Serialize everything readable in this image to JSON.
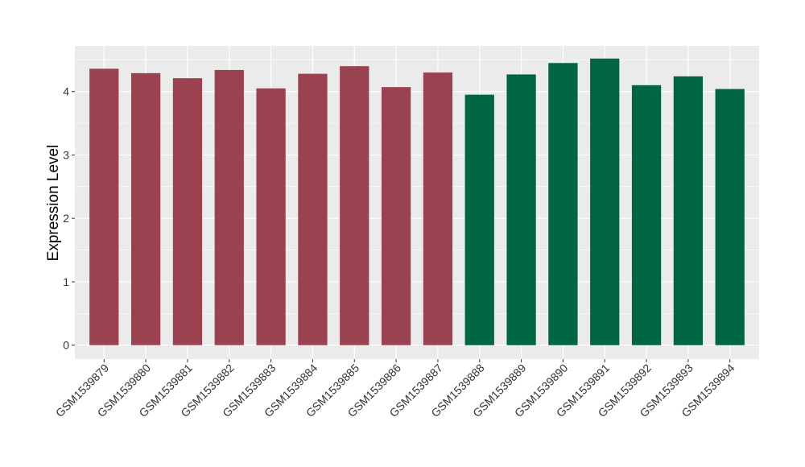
{
  "chart_data": {
    "type": "bar",
    "title": "",
    "xlabel": "",
    "ylabel": "Expression Level",
    "ylim": [
      -0.22,
      4.72
    ],
    "yticks": [
      0,
      1,
      2,
      3,
      4
    ],
    "grid": true,
    "categories": [
      "GSM1539879",
      "GSM1539880",
      "GSM1539881",
      "GSM1539882",
      "GSM1539883",
      "GSM1539884",
      "GSM1539885",
      "GSM1539886",
      "GSM1539887",
      "GSM1539888",
      "GSM1539889",
      "GSM1539890",
      "GSM1539891",
      "GSM1539892",
      "GSM1539893",
      "GSM1539894"
    ],
    "values": [
      4.36,
      4.29,
      4.21,
      4.34,
      4.05,
      4.28,
      4.4,
      4.07,
      4.3,
      3.95,
      4.27,
      4.45,
      4.52,
      4.1,
      4.24,
      4.04
    ],
    "bar_colors": [
      "#9a4250",
      "#9a4250",
      "#9a4250",
      "#9a4250",
      "#9a4250",
      "#9a4250",
      "#9a4250",
      "#9a4250",
      "#9a4250",
      "#006642",
      "#006642",
      "#006642",
      "#006642",
      "#006642",
      "#006642",
      "#006642"
    ],
    "panel_background": "#ebebeb",
    "grid_color": "#ffffff"
  }
}
